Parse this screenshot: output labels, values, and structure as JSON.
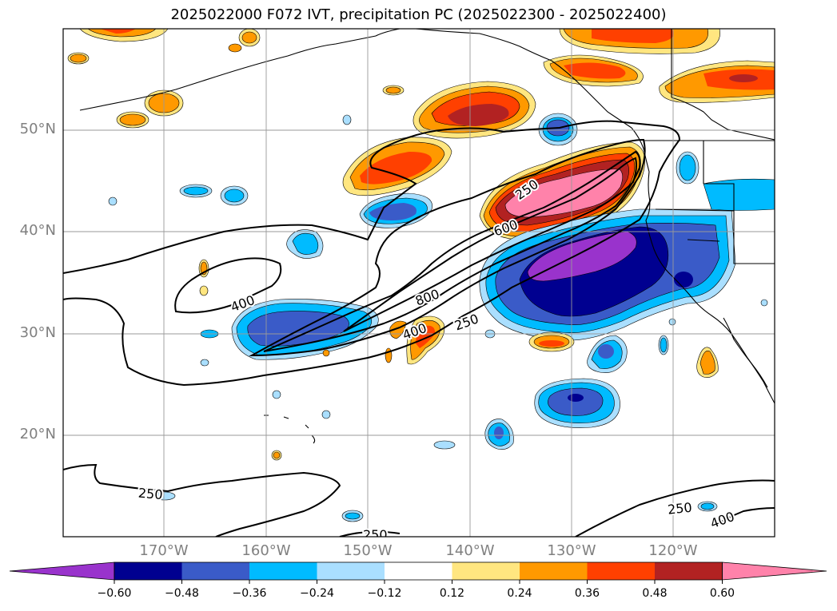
{
  "title": "2025022000 F072 IVT, precipitation PC (2025022300 - 2025022400)",
  "lat_labels": [
    "50°N",
    "40°N",
    "30°N",
    "20°N"
  ],
  "lon_labels": [
    "170°W",
    "160°W",
    "150°W",
    "140°W",
    "130°W",
    "120°W"
  ],
  "colorbar": {
    "labels": [
      "−0.60",
      "−0.48",
      "−0.36",
      "−0.24",
      "−0.12",
      "0.12",
      "0.24",
      "0.36",
      "0.48",
      "0.60"
    ],
    "colors": [
      "#9933cc",
      "#000090",
      "#3a5bc8",
      "#00bbff",
      "#aadfff",
      "#ffffff",
      "#ffe680",
      "#ff9900",
      "#ff4000",
      "#b22222",
      "#ff82aa"
    ]
  },
  "ivt_contour_labels": [
    {
      "text": "250"
    },
    {
      "text": "600"
    },
    {
      "text": "400"
    },
    {
      "text": "800"
    },
    {
      "text": "400"
    },
    {
      "text": "250"
    },
    {
      "text": "250"
    },
    {
      "text": "250"
    },
    {
      "text": "250"
    },
    {
      "text": "400"
    }
  ]
}
